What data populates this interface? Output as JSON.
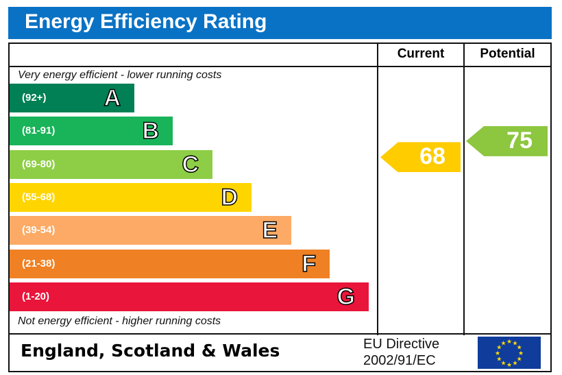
{
  "title": "Energy Efficiency Rating",
  "columns": {
    "current": "Current",
    "potential": "Potential"
  },
  "top_note": "Very energy efficient - lower running costs",
  "bottom_note": "Not energy efficient - higher running costs",
  "footer": {
    "country": "England, Scotland & Wales",
    "directive_line1": "EU Directive",
    "directive_line2": "2002/91/EC",
    "flag": "eu-flag-icon"
  },
  "chart_data": {
    "type": "bar",
    "title": "Energy Efficiency Rating",
    "categories": [
      "A",
      "B",
      "C",
      "D",
      "E",
      "F",
      "G"
    ],
    "ranges": [
      "(92+)",
      "(81-91)",
      "(69-80)",
      "(55-68)",
      "(39-54)",
      "(21-38)",
      "(1-20)"
    ],
    "colors": [
      "#008054",
      "#19b459",
      "#8dce46",
      "#ffd500",
      "#fcaa65",
      "#ef8023",
      "#e9153b"
    ],
    "current": {
      "value": 68,
      "band": "D",
      "color": "#ffcc00"
    },
    "potential": {
      "value": 75,
      "band": "C",
      "color": "#8dc63f"
    }
  }
}
